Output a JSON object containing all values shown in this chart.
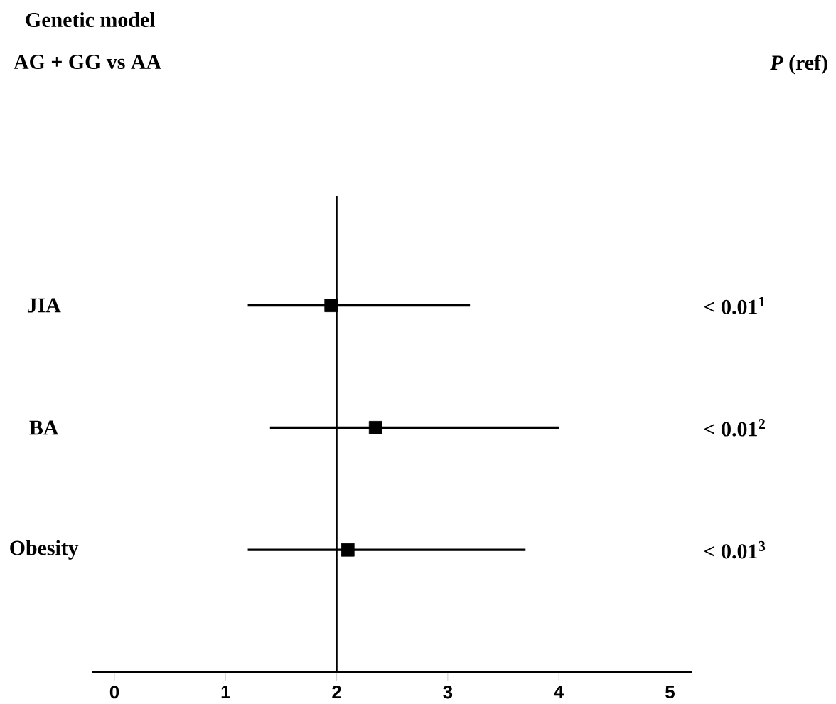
{
  "chart_data": {
    "type": "scatter",
    "orientation": "horizontal",
    "title": "Genetic model",
    "subtitle": "AG + GG vs AA",
    "categories": [
      "JIA",
      "BA",
      "Obesity"
    ],
    "values": [
      1.95,
      2.35,
      2.1
    ],
    "errors": [
      [
        1.2,
        3.2
      ],
      [
        1.4,
        4.0
      ],
      [
        1.2,
        3.7
      ]
    ],
    "value_labels": [
      "< 0.01$^{1}$",
      "< 0.01$^{2}$",
      "< 0.01$^{3}$"
    ],
    "annotations": [
      "*P* (ref)"
    ],
    "color": "#000000",
    "marker": "square",
    "ref_lines": [
      {
        "axis": "x",
        "value": 2
      }
    ],
    "xlim": [
      -0.2,
      5.2
    ],
    "xticks": [
      0,
      1,
      2,
      3,
      4,
      5
    ]
  }
}
